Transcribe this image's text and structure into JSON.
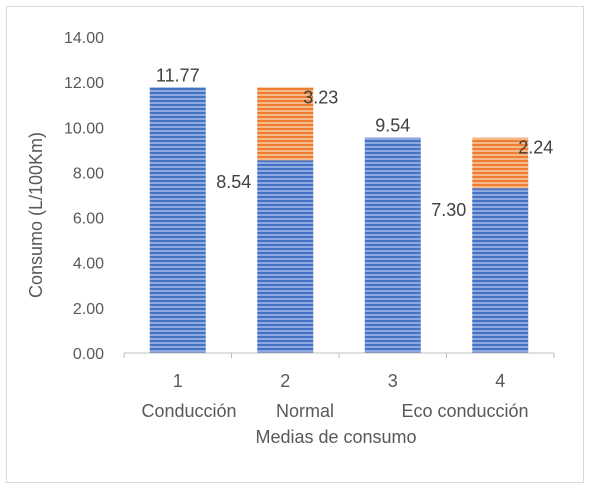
{
  "chart_data": {
    "type": "bar",
    "stacked": true,
    "title": "",
    "xlabel": "Medias de consumo",
    "ylabel": "Consumo (L/100Km)",
    "ylim": [
      0,
      14
    ],
    "yticks": [
      "0.00",
      "2.00",
      "4.00",
      "6.00",
      "8.00",
      "10.00",
      "12.00",
      "14.00"
    ],
    "categories": [
      "1",
      "2",
      "3",
      "4"
    ],
    "category_sublabels": [
      "Conducción",
      "Normal",
      "Eco conducción"
    ],
    "grid": false,
    "legend": "none",
    "series": [
      {
        "color": "#4472c4",
        "values": [
          11.77,
          8.54,
          9.54,
          7.3
        ],
        "labels": [
          "11.77",
          "8.54",
          "9.54",
          "7.30"
        ]
      },
      {
        "color": "#ed7d31",
        "values": [
          0,
          3.23,
          0,
          2.24
        ],
        "labels": [
          "",
          "3.23",
          "",
          "2.24"
        ]
      }
    ]
  }
}
